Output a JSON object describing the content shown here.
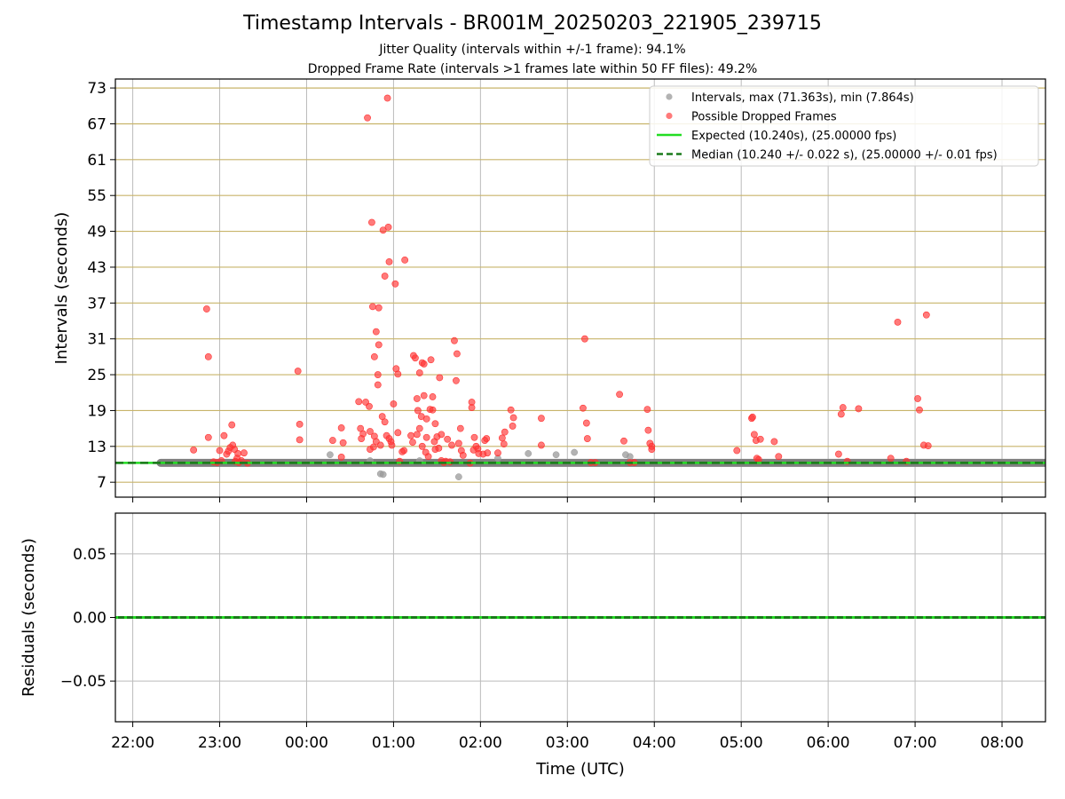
{
  "figure": {
    "title": "Timestamp Intervals - BR001M_20250203_221905_239715",
    "subtitle_jitter": "Jitter Quality (intervals within +/-1 frame): 94.1%",
    "subtitle_dropped": "Dropped Frame Rate (intervals >1 frames late within 50 FF files): 49.2%",
    "colors": {
      "intervals": "#999999",
      "dropped": "#ff3333",
      "expected": "#22dd22",
      "median": "#1a7a1a",
      "hgrid": "#c8b46a",
      "grid": "#bbbbbb",
      "thick_band": "#7f7f7f"
    }
  },
  "chart_data": [
    {
      "type": "scatter",
      "panel": "intervals",
      "ylabel": "Intervals (seconds)",
      "xlim": [
        21.8,
        32.5
      ],
      "ylim": [
        4.5,
        74.5
      ],
      "yticks": [
        7,
        13,
        19,
        25,
        31,
        37,
        43,
        49,
        55,
        61,
        67,
        73
      ],
      "ytick_labels": [
        "7",
        "13",
        "19",
        "25",
        "31",
        "37",
        "43",
        "49",
        "55",
        "61",
        "67",
        "73"
      ],
      "hgrid": true,
      "legend_position": "top-right",
      "legend": [
        "Intervals, max (71.363s), min (7.864s)",
        "Possible Dropped Frames",
        "Expected (10.240s), (25.00000 fps)",
        "Median (10.240 +/- 0.022 s), (25.00000 +/- 0.01 fps)"
      ],
      "expected_value": 10.24,
      "median_value": 10.24,
      "baseline_x_range": [
        22.32,
        32.5
      ],
      "series": [
        {
          "name": "Intervals",
          "points": [
            [
              24.27,
              11.6
            ],
            [
              24.85,
              8.4
            ],
            [
              24.88,
              8.3
            ],
            [
              25.75,
              7.9
            ],
            [
              24.73,
              10.6
            ],
            [
              25.3,
              10.6
            ],
            [
              26.55,
              11.8
            ],
            [
              26.87,
              11.6
            ],
            [
              27.08,
              12.0
            ],
            [
              27.67,
              11.6
            ],
            [
              27.72,
              11.3
            ],
            [
              26.2,
              11.0
            ]
          ]
        },
        {
          "name": "Possible Dropped Frames",
          "points": [
            [
              22.7,
              12.4
            ],
            [
              22.85,
              36.0
            ],
            [
              22.87,
              28.0
            ],
            [
              22.87,
              14.5
            ],
            [
              22.93,
              10.4
            ],
            [
              22.97,
              10.3
            ],
            [
              23.0,
              12.3
            ],
            [
              23.02,
              10.6
            ],
            [
              23.05,
              14.8
            ],
            [
              23.08,
              11.7
            ],
            [
              23.1,
              12.2
            ],
            [
              23.12,
              12.8
            ],
            [
              23.14,
              16.6
            ],
            [
              23.15,
              13.2
            ],
            [
              23.17,
              12.5
            ],
            [
              23.18,
              10.5
            ],
            [
              23.2,
              11.0
            ],
            [
              23.21,
              11.8
            ],
            [
              23.22,
              10.3
            ],
            [
              23.25,
              10.6
            ],
            [
              23.28,
              11.9
            ],
            [
              23.32,
              10.2
            ],
            [
              23.9,
              25.6
            ],
            [
              23.92,
              16.7
            ],
            [
              23.92,
              14.1
            ],
            [
              24.3,
              14.0
            ],
            [
              24.4,
              11.2
            ],
            [
              24.4,
              16.1
            ],
            [
              24.42,
              13.6
            ],
            [
              24.6,
              20.5
            ],
            [
              24.62,
              16.0
            ],
            [
              24.63,
              14.3
            ],
            [
              24.65,
              15.1
            ],
            [
              24.68,
              20.4
            ],
            [
              24.7,
              68.0
            ],
            [
              24.72,
              19.7
            ],
            [
              24.73,
              12.5
            ],
            [
              24.73,
              15.5
            ],
            [
              24.75,
              50.5
            ],
            [
              24.76,
              36.4
            ],
            [
              24.77,
              12.9
            ],
            [
              24.78,
              14.7
            ],
            [
              24.78,
              28.0
            ],
            [
              24.8,
              13.8
            ],
            [
              24.8,
              32.2
            ],
            [
              24.82,
              25.0
            ],
            [
              24.82,
              23.3
            ],
            [
              24.83,
              36.2
            ],
            [
              24.83,
              30.0
            ],
            [
              24.85,
              13.2
            ],
            [
              24.87,
              18.0
            ],
            [
              24.88,
              49.2
            ],
            [
              24.9,
              41.5
            ],
            [
              24.9,
              17.1
            ],
            [
              24.92,
              14.8
            ],
            [
              24.93,
              71.3
            ],
            [
              24.94,
              49.7
            ],
            [
              24.95,
              43.9
            ],
            [
              24.95,
              14.3
            ],
            [
              24.97,
              13.8
            ],
            [
              24.98,
              13.2
            ],
            [
              25.0,
              20.1
            ],
            [
              25.02,
              40.2
            ],
            [
              25.03,
              26.0
            ],
            [
              25.05,
              25.1
            ],
            [
              25.05,
              15.3
            ],
            [
              25.07,
              10.5
            ],
            [
              25.1,
              12.1
            ],
            [
              25.12,
              12.3
            ],
            [
              25.13,
              44.2
            ],
            [
              25.2,
              14.8
            ],
            [
              25.22,
              13.7
            ],
            [
              25.23,
              28.2
            ],
            [
              25.25,
              27.8
            ],
            [
              25.27,
              21.0
            ],
            [
              25.27,
              15.0
            ],
            [
              25.28,
              19.0
            ],
            [
              25.3,
              16.0
            ],
            [
              25.3,
              25.3
            ],
            [
              25.32,
              18.0
            ],
            [
              25.33,
              27.0
            ],
            [
              25.33,
              13.0
            ],
            [
              25.35,
              21.5
            ],
            [
              25.35,
              26.8
            ],
            [
              25.37,
              12.0
            ],
            [
              25.38,
              17.6
            ],
            [
              25.38,
              14.5
            ],
            [
              25.4,
              11.3
            ],
            [
              25.42,
              19.2
            ],
            [
              25.43,
              27.5
            ],
            [
              25.45,
              19.1
            ],
            [
              25.45,
              21.3
            ],
            [
              25.47,
              13.8
            ],
            [
              25.48,
              12.5
            ],
            [
              25.48,
              16.8
            ],
            [
              25.5,
              14.6
            ],
            [
              25.52,
              12.7
            ],
            [
              25.53,
              24.5
            ],
            [
              25.55,
              10.6
            ],
            [
              25.55,
              15.0
            ],
            [
              25.58,
              10.3
            ],
            [
              25.6,
              10.5
            ],
            [
              25.62,
              14.2
            ],
            [
              25.65,
              10.4
            ],
            [
              25.67,
              13.2
            ],
            [
              25.7,
              30.7
            ],
            [
              25.72,
              24.0
            ],
            [
              25.73,
              28.5
            ],
            [
              25.75,
              13.5
            ],
            [
              25.77,
              16.0
            ],
            [
              25.78,
              12.3
            ],
            [
              25.8,
              11.5
            ],
            [
              25.88,
              10.2
            ],
            [
              25.9,
              20.4
            ],
            [
              25.9,
              19.5
            ],
            [
              25.92,
              12.4
            ],
            [
              25.93,
              14.5
            ],
            [
              25.95,
              13.0
            ],
            [
              25.97,
              12.6
            ],
            [
              25.98,
              11.8
            ],
            [
              26.03,
              11.7
            ],
            [
              26.05,
              14.0
            ],
            [
              26.07,
              14.3
            ],
            [
              26.08,
              11.9
            ],
            [
              26.2,
              11.9
            ],
            [
              26.25,
              14.4
            ],
            [
              26.27,
              13.4
            ],
            [
              26.28,
              15.4
            ],
            [
              26.35,
              19.1
            ],
            [
              26.37,
              16.4
            ],
            [
              26.38,
              17.8
            ],
            [
              26.7,
              17.7
            ],
            [
              26.7,
              13.2
            ],
            [
              27.18,
              19.4
            ],
            [
              27.2,
              31.0
            ],
            [
              27.22,
              16.9
            ],
            [
              27.23,
              14.3
            ],
            [
              27.27,
              10.3
            ],
            [
              27.32,
              10.3
            ],
            [
              27.6,
              21.7
            ],
            [
              27.65,
              13.9
            ],
            [
              27.72,
              10.3
            ],
            [
              27.77,
              10.3
            ],
            [
              27.92,
              19.2
            ],
            [
              27.93,
              15.7
            ],
            [
              27.95,
              13.5
            ],
            [
              27.97,
              13.0
            ],
            [
              27.97,
              12.5
            ],
            [
              28.95,
              12.3
            ],
            [
              29.12,
              17.7
            ],
            [
              29.13,
              17.9
            ],
            [
              29.15,
              15.0
            ],
            [
              29.17,
              14.0
            ],
            [
              29.18,
              11.0
            ],
            [
              29.22,
              14.2
            ],
            [
              29.2,
              10.8
            ],
            [
              29.38,
              13.8
            ],
            [
              29.43,
              11.3
            ],
            [
              30.12,
              11.7
            ],
            [
              30.15,
              18.4
            ],
            [
              30.17,
              19.5
            ],
            [
              30.22,
              10.5
            ],
            [
              30.35,
              19.3
            ],
            [
              30.72,
              11.0
            ],
            [
              30.8,
              33.8
            ],
            [
              30.9,
              10.5
            ],
            [
              31.03,
              21.0
            ],
            [
              31.05,
              19.1
            ],
            [
              31.1,
              13.2
            ],
            [
              31.13,
              35.0
            ],
            [
              31.15,
              13.1
            ]
          ]
        }
      ]
    },
    {
      "type": "line",
      "panel": "residuals",
      "xlabel": "Time (UTC)",
      "ylabel": "Residuals (seconds)",
      "xlim": [
        21.8,
        32.5
      ],
      "ylim": [
        -0.082,
        0.082
      ],
      "yticks": [
        -0.05,
        0.0,
        0.05
      ],
      "ytick_labels": [
        "−0.05",
        "0.00",
        "0.05"
      ],
      "xticks": [
        22,
        23,
        24,
        25,
        26,
        27,
        28,
        29,
        30,
        31,
        32
      ],
      "xtick_labels": [
        "22:00",
        "23:00",
        "00:00",
        "01:00",
        "02:00",
        "03:00",
        "04:00",
        "05:00",
        "06:00",
        "07:00",
        "08:00"
      ],
      "grid": true,
      "residual_value": 0.0
    }
  ]
}
